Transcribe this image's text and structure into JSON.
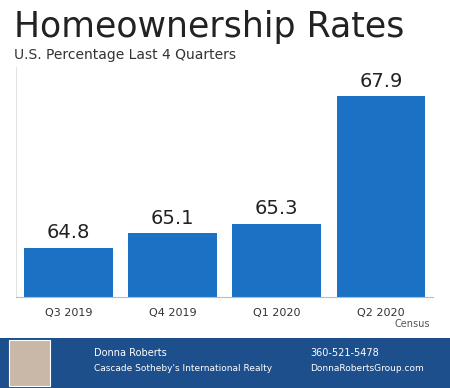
{
  "chart_data": {
    "type": "bar",
    "title": "Homeownership Rates",
    "subtitle": "U.S. Percentage Last 4 Quarters",
    "categories": [
      "Q3 2019",
      "Q4 2019",
      "Q1 2020",
      "Q2 2020"
    ],
    "values": [
      64.8,
      65.1,
      65.3,
      67.9
    ],
    "color": "#1b72c4",
    "ylim": [
      63.8,
      68.5
    ],
    "data_labels": true,
    "tick_labels": "x",
    "grid": false,
    "annotations": [
      "Census"
    ]
  },
  "footer": {
    "name": "Donna Roberts",
    "company": "Cascade Sotheby's International Realty",
    "phone": "360-521-5478",
    "website": "DonnaRobertsGroup.com"
  }
}
